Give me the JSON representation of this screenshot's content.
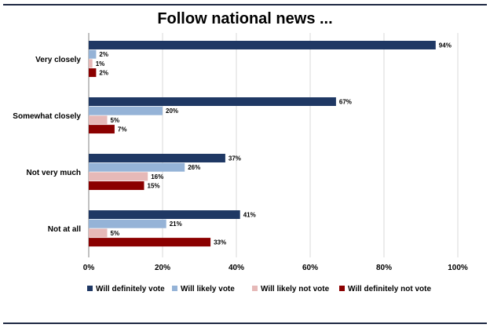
{
  "chart_data": {
    "type": "bar",
    "orientation": "horizontal",
    "title": "Follow national news ...",
    "categories": [
      "Very closely",
      "Somewhat closely",
      "Not very much",
      "Not at all"
    ],
    "series": [
      {
        "name": "Will definitely vote",
        "color": "#1f3864",
        "values": [
          94,
          67,
          37,
          41
        ]
      },
      {
        "name": "Will likely vote",
        "color": "#95b3d7",
        "values": [
          2,
          20,
          26,
          21
        ]
      },
      {
        "name": "Will likely not vote",
        "color": "#e6b9b8",
        "values": [
          1,
          5,
          16,
          5
        ]
      },
      {
        "name": "Will definitely not vote",
        "color": "#8b0000",
        "values": [
          2,
          7,
          15,
          33
        ]
      }
    ],
    "value_suffix": "%",
    "xlim": [
      0,
      100
    ],
    "x_ticks": [
      0,
      20,
      40,
      60,
      80,
      100
    ],
    "x_tick_labels": [
      "0%",
      "20%",
      "40%",
      "60%",
      "80%",
      "100%"
    ],
    "grid": true,
    "legend_position": "bottom"
  }
}
